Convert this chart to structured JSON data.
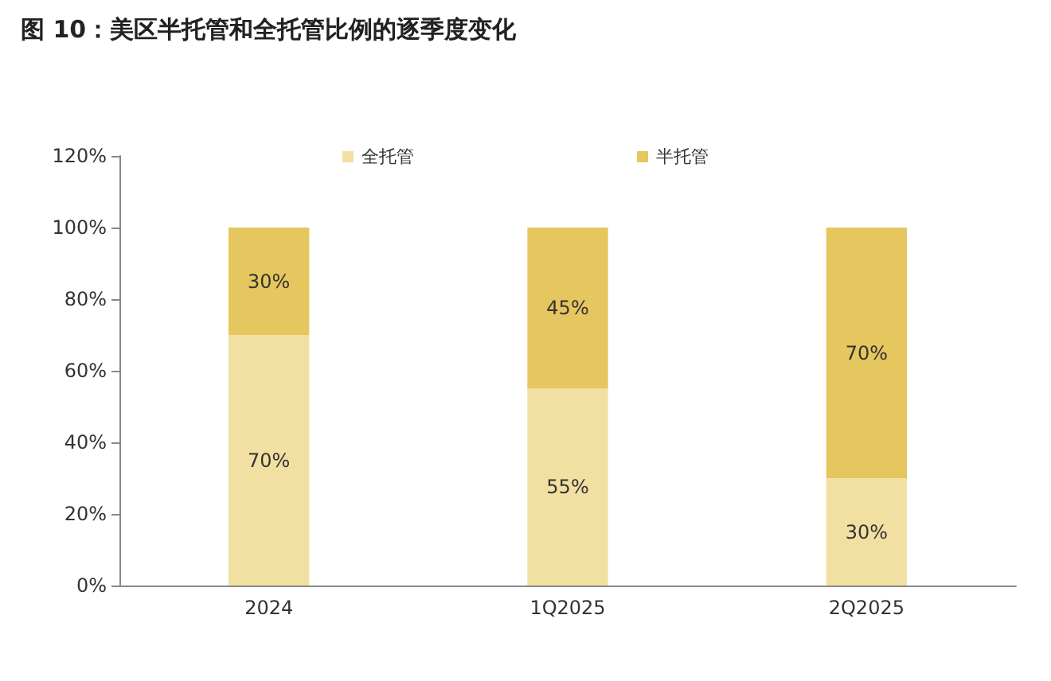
{
  "chart_data": {
    "type": "bar",
    "title": "图 10：美区半托管和全托管比例的逐季度变化",
    "stacked": true,
    "categories": [
      "2024",
      "1Q2025",
      "2Q2025"
    ],
    "series": [
      {
        "name": "全托管",
        "color": "#f2e0a2",
        "values": [
          70,
          55,
          30
        ],
        "value_labels": [
          "70%",
          "55%",
          "30%"
        ]
      },
      {
        "name": "半托管",
        "color": "#e6c65e",
        "values": [
          30,
          45,
          70
        ],
        "value_labels": [
          "30%",
          "45%",
          "70%"
        ]
      }
    ],
    "ylim": [
      0,
      120
    ],
    "yticks": [
      {
        "value": 0,
        "label": "0%"
      },
      {
        "value": 20,
        "label": "20%"
      },
      {
        "value": 40,
        "label": "40%"
      },
      {
        "value": 60,
        "label": "60%"
      },
      {
        "value": 80,
        "label": "80%"
      },
      {
        "value": 100,
        "label": "100%"
      },
      {
        "value": 120,
        "label": "120%"
      }
    ],
    "grid": false,
    "legend": "top"
  }
}
